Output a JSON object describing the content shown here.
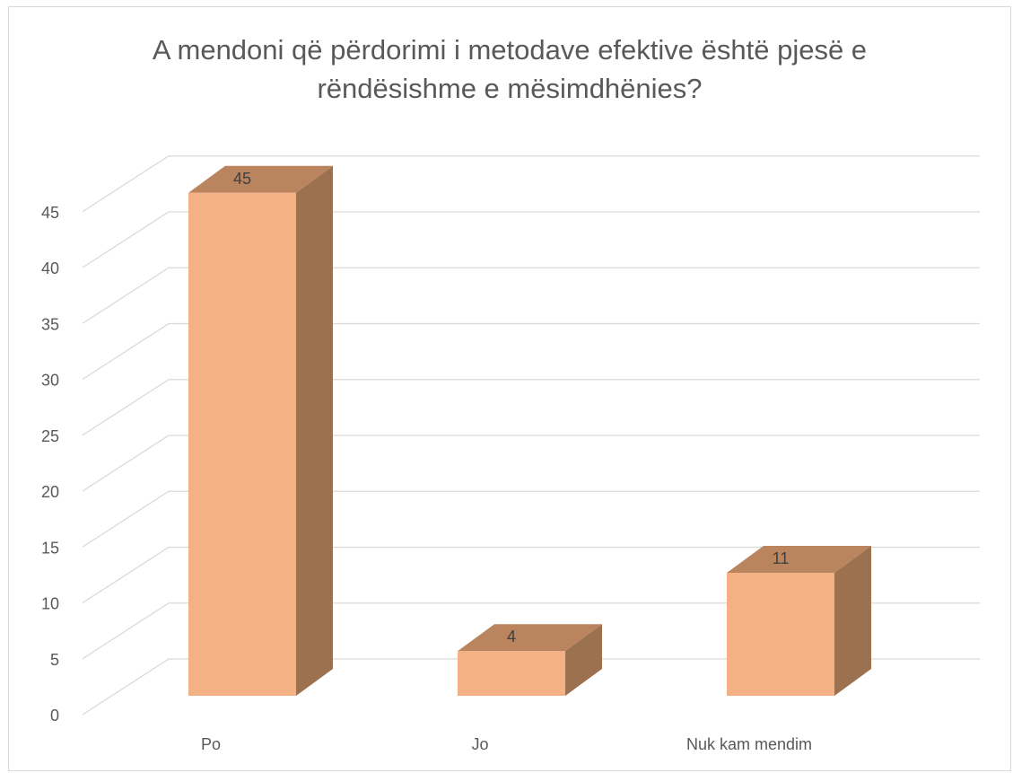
{
  "chart_data": {
    "type": "bar",
    "style": "3d-column",
    "title_lines": [
      "A mendoni që përdorimi i metodave efektive është pjesë e",
      "rëndësishme e mësimdhënies?"
    ],
    "categories": [
      "Po",
      "Jo",
      "Nuk kam mendim"
    ],
    "values": [
      45,
      4,
      11
    ],
    "data_labels": [
      "45",
      "4",
      "11"
    ],
    "ylim": [
      0,
      45
    ],
    "yticks": [
      0,
      5,
      10,
      15,
      20,
      25,
      30,
      35,
      40,
      45
    ],
    "ytick_labels": [
      "0",
      "5",
      "10",
      "15",
      "20",
      "25",
      "30",
      "35",
      "40",
      "45"
    ],
    "grid": true,
    "legend": "none",
    "colors": {
      "bar_front": "#f4b183",
      "bar_top": "#b9845e",
      "bar_side": "#9c7150",
      "grid": "#d9d9d9",
      "text": "#595959",
      "label": "#404040"
    }
  }
}
